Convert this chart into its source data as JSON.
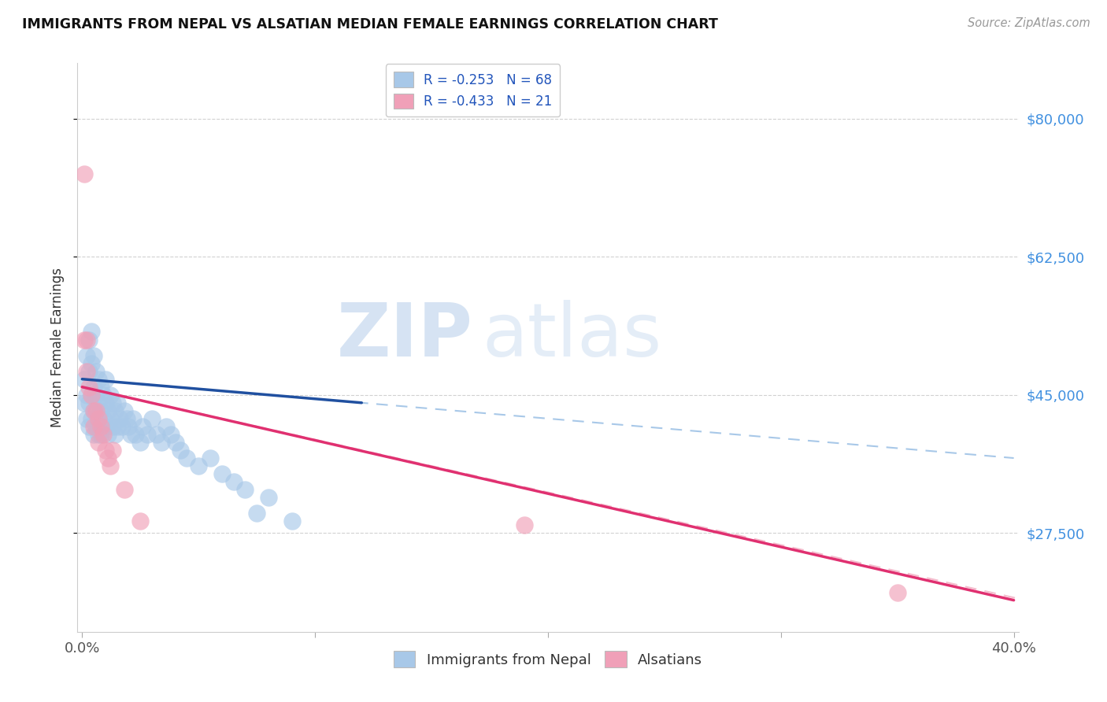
{
  "title": "IMMIGRANTS FROM NEPAL VS ALSATIAN MEDIAN FEMALE EARNINGS CORRELATION CHART",
  "source": "Source: ZipAtlas.com",
  "ylabel": "Median Female Earnings",
  "xlim": [
    -0.002,
    0.402
  ],
  "ylim": [
    15000,
    87000
  ],
  "yticks": [
    27500,
    45000,
    62500,
    80000
  ],
  "ytick_labels": [
    "$27,500",
    "$45,000",
    "$62,500",
    "$80,000"
  ],
  "legend_entry1": "R = -0.253   N = 68",
  "legend_entry2": "R = -0.433   N = 21",
  "blue_color": "#a8c8e8",
  "pink_color": "#f0a0b8",
  "trend_blue": "#2050a0",
  "trend_pink": "#e03070",
  "watermark_zip": "ZIP",
  "watermark_atlas": "atlas",
  "nepal_x": [
    0.001,
    0.001,
    0.002,
    0.002,
    0.002,
    0.003,
    0.003,
    0.003,
    0.003,
    0.004,
    0.004,
    0.004,
    0.004,
    0.005,
    0.005,
    0.005,
    0.005,
    0.006,
    0.006,
    0.006,
    0.007,
    0.007,
    0.007,
    0.008,
    0.008,
    0.008,
    0.009,
    0.009,
    0.01,
    0.01,
    0.01,
    0.011,
    0.011,
    0.012,
    0.012,
    0.013,
    0.013,
    0.014,
    0.014,
    0.015,
    0.015,
    0.016,
    0.017,
    0.018,
    0.019,
    0.02,
    0.021,
    0.022,
    0.023,
    0.025,
    0.026,
    0.028,
    0.03,
    0.032,
    0.034,
    0.036,
    0.038,
    0.04,
    0.042,
    0.045,
    0.05,
    0.055,
    0.06,
    0.065,
    0.07,
    0.075,
    0.08,
    0.09
  ],
  "nepal_y": [
    47000,
    44000,
    50000,
    45000,
    42000,
    52000,
    48000,
    44000,
    41000,
    53000,
    49000,
    45000,
    42000,
    50000,
    46000,
    43000,
    40000,
    48000,
    45000,
    41000,
    47000,
    44000,
    40000,
    46000,
    43000,
    40000,
    45000,
    42000,
    47000,
    44000,
    41000,
    43000,
    40000,
    45000,
    42000,
    44000,
    41000,
    43000,
    40000,
    44000,
    41000,
    42000,
    41000,
    43000,
    42000,
    41000,
    40000,
    42000,
    40000,
    39000,
    41000,
    40000,
    42000,
    40000,
    39000,
    41000,
    40000,
    39000,
    38000,
    37000,
    36000,
    37000,
    35000,
    34000,
    33000,
    30000,
    32000,
    29000
  ],
  "alsatian_x": [
    0.001,
    0.001,
    0.002,
    0.002,
    0.003,
    0.004,
    0.005,
    0.005,
    0.006,
    0.007,
    0.007,
    0.008,
    0.009,
    0.01,
    0.011,
    0.012,
    0.013,
    0.018,
    0.025,
    0.19,
    0.35
  ],
  "alsatian_y": [
    73000,
    52000,
    52000,
    48000,
    46000,
    45000,
    43000,
    41000,
    43000,
    42000,
    39000,
    41000,
    40000,
    38000,
    37000,
    36000,
    38000,
    33000,
    29000,
    28500,
    20000
  ],
  "nepal_trend_x0": 0.0,
  "nepal_trend_x1": 0.4,
  "nepal_trend_y0": 47000,
  "nepal_trend_y1": 37000,
  "alsatian_trend_x0": 0.0,
  "alsatian_trend_x1": 0.4,
  "alsatian_trend_y0": 46000,
  "alsatian_trend_y1": 19000
}
